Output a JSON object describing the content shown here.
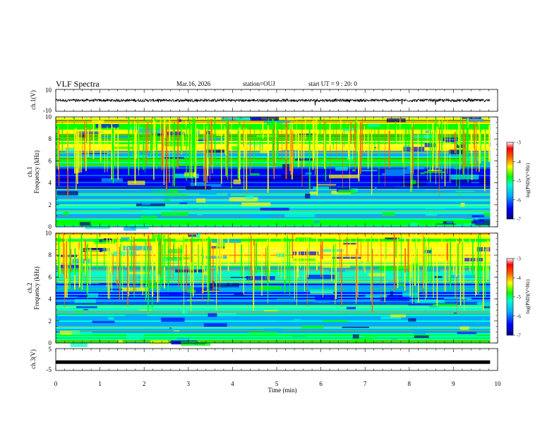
{
  "header": {
    "title": "VLF Spectra",
    "date": "Mar.16, 2026",
    "station": "station=OUJ",
    "start_ut": "start UT =  9 : 20: 0"
  },
  "chart_data": [
    {
      "type": "line",
      "name": "ch1-waveform",
      "ylabel": "ch.1(V)",
      "ylim": [
        -10,
        10
      ],
      "yticks": [
        "10",
        "-10"
      ],
      "description_values": {
        "mean": 0,
        "typical_amplitude": 1.2
      }
    },
    {
      "type": "heatmap",
      "name": "ch1-spectrogram",
      "ylabel_channel": "ch.1",
      "ylabel": "Frequency (kHz)",
      "ylim": [
        0,
        10
      ],
      "yticks": [
        "0",
        "2",
        "4",
        "6",
        "8",
        "10"
      ],
      "xlim": [
        0,
        10
      ],
      "data_extent_minutes": 9.83,
      "colorbar": {
        "label": "log(PSD)(V²/Hz)",
        "range": [
          -7,
          -3
        ],
        "ticks": [
          "-3",
          "-4",
          "-5",
          "-6",
          "-7"
        ],
        "colors": [
          "#000080",
          "#0000ff",
          "#00aaff",
          "#00ffcc",
          "#00ff00",
          "#ffff00",
          "#ff6600",
          "#ff0000",
          "#ffffff"
        ]
      }
    },
    {
      "type": "heatmap",
      "name": "ch2-spectrogram",
      "ylabel_channel": "ch.2",
      "ylabel": "Frequency (kHz)",
      "ylim": [
        0,
        10
      ],
      "yticks": [
        "0",
        "2",
        "4",
        "6",
        "8",
        "10"
      ],
      "xlim": [
        0,
        10
      ],
      "data_extent_minutes": 9.83,
      "colorbar": {
        "label": "log(PSD)(V²/Hz)",
        "range": [
          -7,
          -3
        ],
        "ticks": [
          "-3",
          "-4",
          "-5",
          "-6",
          "-7"
        ],
        "colors": [
          "#000080",
          "#0000ff",
          "#00aaff",
          "#00ffcc",
          "#00ff00",
          "#ffff00",
          "#ff6600",
          "#ff0000",
          "#ffffff"
        ]
      }
    },
    {
      "type": "line",
      "name": "ch3-signal",
      "ylabel": "ch.3(V)",
      "ylim": [
        -5,
        5
      ],
      "yticks": [
        "5",
        "-5"
      ],
      "constant_value": -1.2
    }
  ],
  "xaxis": {
    "label": "Time (min)",
    "ticks": [
      "0",
      "1",
      "2",
      "3",
      "4",
      "5",
      "6",
      "7",
      "8",
      "9",
      "10"
    ]
  }
}
